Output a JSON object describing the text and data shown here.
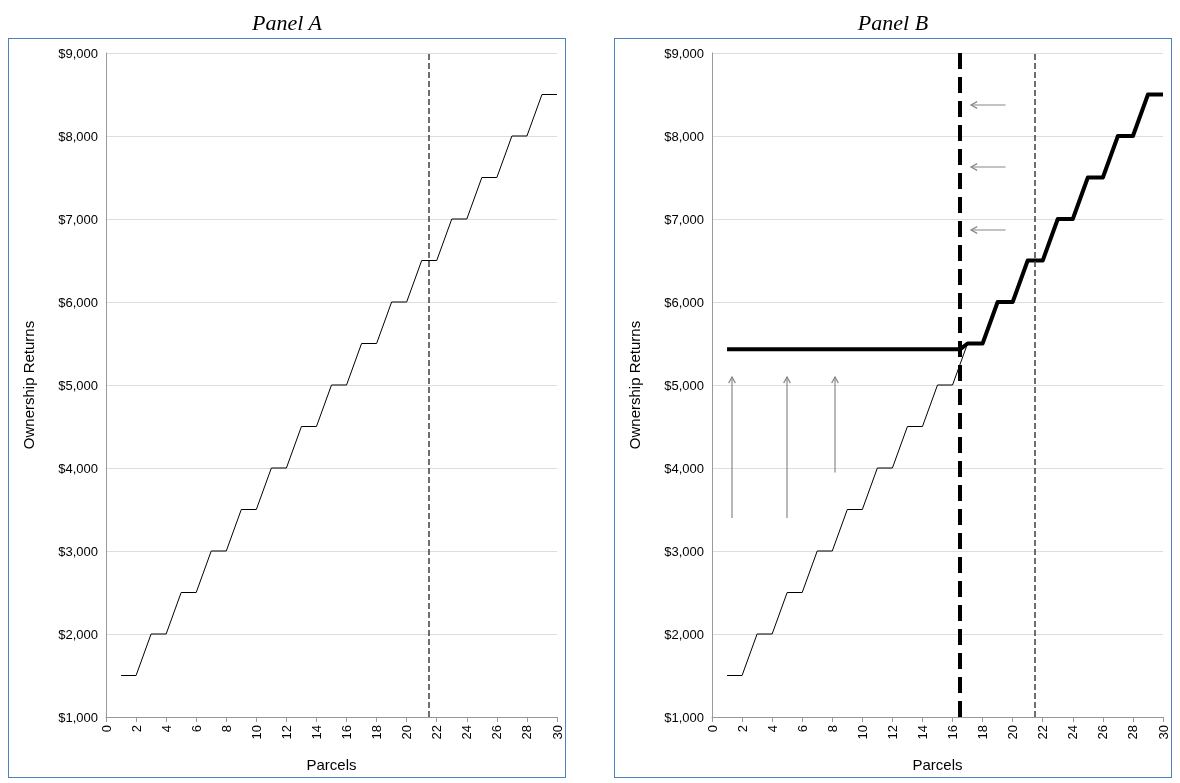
{
  "chart_data": [
    {
      "type": "line",
      "title": "Panel A",
      "xlabel": "Parcels",
      "ylabel": "Ownership Returns",
      "xlim": [
        0,
        30
      ],
      "xticks": [
        0,
        2,
        4,
        6,
        8,
        10,
        12,
        14,
        16,
        18,
        20,
        22,
        24,
        26,
        28,
        30
      ],
      "ylim": [
        1000,
        9000
      ],
      "yticks": [
        {
          "value": 1000,
          "label": "$1,000"
        },
        {
          "value": 2000,
          "label": "$2,000"
        },
        {
          "value": 3000,
          "label": "$3,000"
        },
        {
          "value": 4000,
          "label": "$4,000"
        },
        {
          "value": 5000,
          "label": "$5,000"
        },
        {
          "value": 6000,
          "label": "$6,000"
        },
        {
          "value": 7000,
          "label": "$7,000"
        },
        {
          "value": 8000,
          "label": "$8,000"
        },
        {
          "value": 9000,
          "label": "$9,000"
        }
      ],
      "grid": "y",
      "marker": "none",
      "line_style": "solid",
      "series": [
        {
          "color": "#000000",
          "x": [
            1,
            2,
            3,
            4,
            5,
            6,
            7,
            8,
            9,
            10,
            11,
            12,
            13,
            14,
            15,
            16,
            17,
            18,
            19,
            20,
            21,
            22,
            23,
            24,
            25,
            26,
            27,
            28,
            29,
            30
          ],
          "values": [
            1500,
            1500,
            2000,
            2000,
            2500,
            2500,
            3000,
            3000,
            3500,
            3500,
            4000,
            4000,
            4500,
            4500,
            5000,
            5000,
            5500,
            5500,
            6000,
            6000,
            6500,
            6500,
            7000,
            7000,
            7500,
            7500,
            8000,
            8000,
            8500,
            8500
          ]
        }
      ],
      "ref_lines": [
        {
          "axis": "x",
          "value": 21.5,
          "color": "#404040",
          "line_style": "dashed"
        }
      ]
    },
    {
      "type": "line",
      "title": "Panel B",
      "xlabel": "Parcels",
      "ylabel": "Ownership Returns",
      "xlim": [
        0,
        30
      ],
      "xticks": [
        0,
        2,
        4,
        6,
        8,
        10,
        12,
        14,
        16,
        18,
        20,
        22,
        24,
        26,
        28,
        30
      ],
      "ylim": [
        1000,
        9000
      ],
      "yticks": [
        {
          "value": 1000,
          "label": "$1,000"
        },
        {
          "value": 2000,
          "label": "$2,000"
        },
        {
          "value": 3000,
          "label": "$3,000"
        },
        {
          "value": 4000,
          "label": "$4,000"
        },
        {
          "value": 5000,
          "label": "$5,000"
        },
        {
          "value": 6000,
          "label": "$6,000"
        },
        {
          "value": 7000,
          "label": "$7,000"
        },
        {
          "value": 8000,
          "label": "$8,000"
        },
        {
          "value": 9000,
          "label": "$9,000"
        }
      ],
      "grid": "y",
      "marker": "none",
      "line_style": "solid",
      "series": [
        {
          "color": "#000000",
          "x": [
            1,
            2,
            3,
            4,
            5,
            6,
            7,
            8,
            9,
            10,
            11,
            12,
            13,
            14,
            15,
            16,
            17
          ],
          "values": [
            1500,
            1500,
            2000,
            2000,
            2500,
            2500,
            3000,
            3000,
            3500,
            3500,
            4000,
            4000,
            4500,
            4500,
            5000,
            5000,
            5500
          ]
        },
        {
          "color": "#000000",
          "x": [
            1,
            16.5,
            17,
            18,
            19,
            20,
            21,
            22,
            23,
            24,
            25,
            26,
            27,
            28,
            29,
            30
          ],
          "values": [
            5430,
            5430,
            5500,
            5500,
            6000,
            6000,
            6500,
            6500,
            7000,
            7000,
            7500,
            7500,
            8000,
            8000,
            8500,
            8500
          ]
        }
      ],
      "ref_lines": [
        {
          "axis": "x",
          "value": 16.5,
          "color": "#000000",
          "line_style": "dashed"
        },
        {
          "axis": "x",
          "value": 21.5,
          "color": "#404040",
          "line_style": "dashed"
        }
      ]
    }
  ]
}
